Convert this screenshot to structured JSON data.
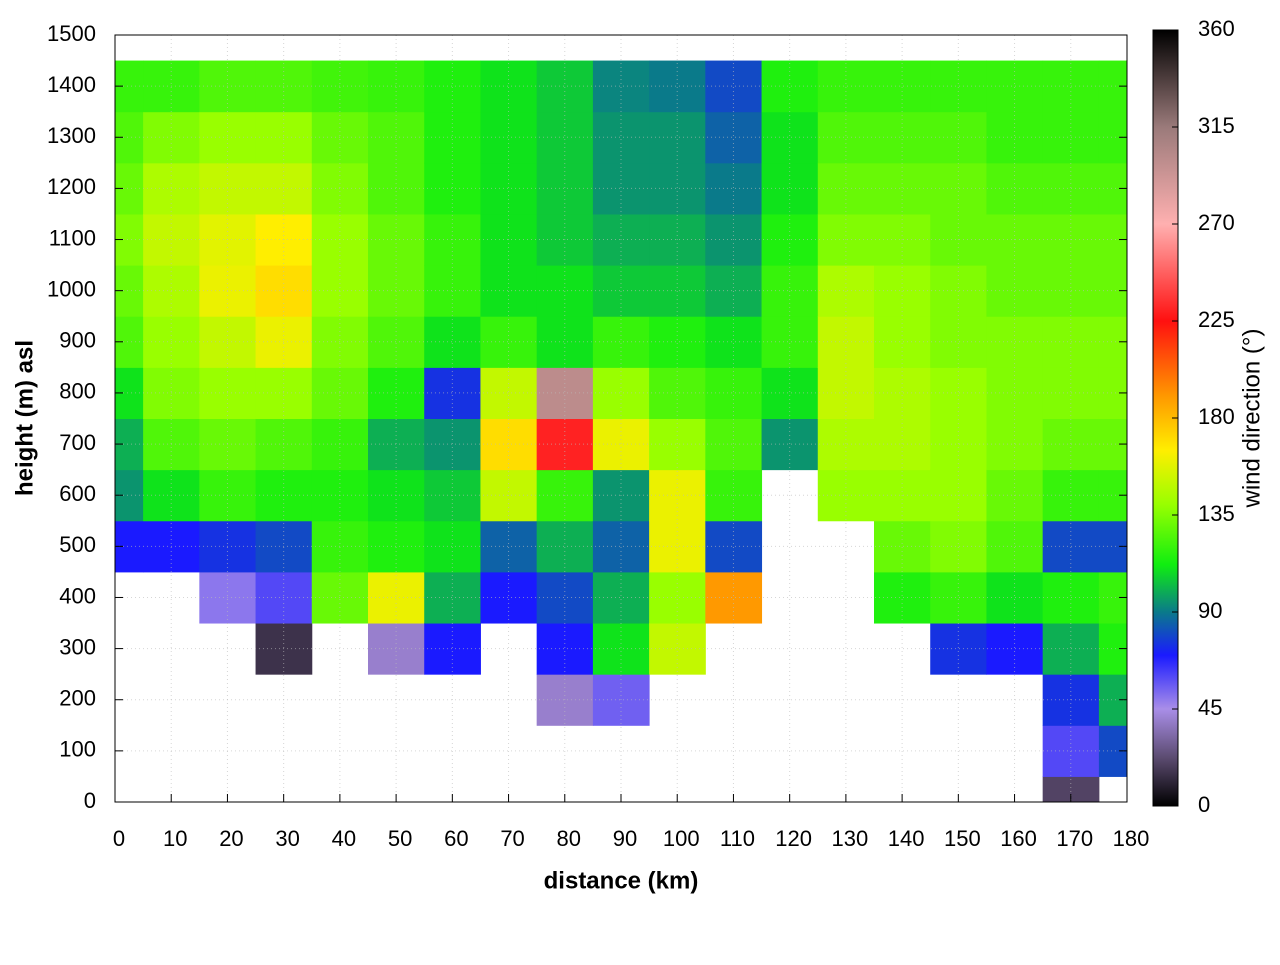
{
  "chart_data": {
    "type": "heatmap",
    "x_label": "distance (km)",
    "y_label": "height (m) asl",
    "colorbar_label": "wind direction (°)",
    "x": [
      0,
      10,
      20,
      30,
      40,
      50,
      60,
      70,
      80,
      90,
      100,
      110,
      120,
      130,
      140,
      150,
      160,
      170,
      180
    ],
    "y": [
      0,
      100,
      200,
      300,
      400,
      500,
      600,
      700,
      800,
      900,
      1000,
      1100,
      1200,
      1300,
      1400,
      1500
    ],
    "z": [
      [
        null,
        null,
        null,
        null,
        null,
        70,
        95,
        100,
        110,
        125,
        130,
        135,
        130,
        125,
        120,
        null
      ],
      [
        null,
        null,
        null,
        null,
        null,
        70,
        110,
        125,
        135,
        140,
        145,
        150,
        145,
        135,
        120,
        null
      ],
      [
        null,
        null,
        null,
        null,
        50,
        75,
        120,
        130,
        140,
        150,
        160,
        158,
        150,
        140,
        125,
        null
      ],
      [
        null,
        null,
        null,
        15,
        60,
        80,
        115,
        125,
        140,
        160,
        170,
        165,
        150,
        140,
        125,
        null
      ],
      [
        null,
        null,
        null,
        null,
        130,
        120,
        115,
        120,
        130,
        135,
        140,
        140,
        135,
        130,
        122,
        null
      ],
      [
        null,
        null,
        null,
        40,
        160,
        115,
        110,
        100,
        115,
        125,
        130,
        130,
        125,
        125,
        120,
        null
      ],
      [
        null,
        null,
        null,
        70,
        100,
        110,
        105,
        95,
        75,
        110,
        120,
        120,
        115,
        115,
        115,
        null
      ],
      [
        null,
        null,
        null,
        null,
        70,
        85,
        150,
        170,
        150,
        120,
        110,
        110,
        110,
        110,
        110,
        null
      ],
      [
        null,
        null,
        40,
        70,
        80,
        100,
        120,
        230,
        300,
        110,
        110,
        105,
        105,
        105,
        105,
        null
      ],
      [
        null,
        null,
        55,
        110,
        100,
        85,
        95,
        160,
        140,
        120,
        105,
        100,
        95,
        95,
        92,
        null
      ],
      [
        null,
        null,
        null,
        150,
        140,
        160,
        160,
        140,
        125,
        115,
        105,
        100,
        95,
        95,
        90,
        null
      ],
      [
        null,
        null,
        null,
        null,
        190,
        80,
        120,
        125,
        120,
        110,
        100,
        95,
        90,
        85,
        80,
        null
      ],
      [
        null,
        null,
        null,
        null,
        null,
        null,
        null,
        95,
        110,
        120,
        120,
        115,
        110,
        110,
        115,
        null
      ],
      [
        null,
        null,
        null,
        null,
        null,
        null,
        140,
        145,
        150,
        150,
        145,
        135,
        130,
        125,
        120,
        null
      ],
      [
        null,
        null,
        null,
        null,
        115,
        130,
        140,
        145,
        145,
        140,
        140,
        135,
        130,
        125,
        120,
        null
      ],
      [
        null,
        null,
        null,
        75,
        120,
        135,
        140,
        140,
        140,
        135,
        135,
        130,
        130,
        125,
        120,
        null
      ],
      [
        null,
        null,
        null,
        70,
        110,
        125,
        130,
        135,
        135,
        135,
        130,
        130,
        125,
        120,
        120,
        null
      ],
      [
        20,
        60,
        75,
        100,
        115,
        80,
        120,
        130,
        135,
        135,
        130,
        130,
        125,
        120,
        120,
        null
      ],
      [
        null,
        80,
        100,
        115,
        120,
        80,
        120,
        130,
        135,
        135,
        130,
        130,
        125,
        120,
        120,
        null
      ]
    ],
    "xlim": [
      0,
      180
    ],
    "xticks": [
      0,
      10,
      20,
      30,
      40,
      50,
      60,
      70,
      80,
      90,
      100,
      110,
      120,
      130,
      140,
      150,
      160,
      170,
      180
    ],
    "ylim": [
      0,
      1500
    ],
    "yticks": [
      0,
      100,
      200,
      300,
      400,
      500,
      600,
      700,
      800,
      900,
      1000,
      1100,
      1200,
      1300,
      1400,
      1500
    ],
    "zlim": [
      0,
      360
    ],
    "zticks": [
      0,
      45,
      90,
      135,
      180,
      225,
      270,
      315,
      360
    ],
    "grid": true,
    "colormap": [
      [
        0,
        "#000000"
      ],
      [
        22,
        "#5a4a6e"
      ],
      [
        45,
        "#a98ee8"
      ],
      [
        70,
        "#1a1aff"
      ],
      [
        90,
        "#0a7a8a"
      ],
      [
        112,
        "#10ee10"
      ],
      [
        140,
        "#99ff00"
      ],
      [
        165,
        "#ffee00"
      ],
      [
        190,
        "#ff9900"
      ],
      [
        225,
        "#ff1010"
      ],
      [
        270,
        "#ffb0b0"
      ],
      [
        315,
        "#9a7a7a"
      ],
      [
        360,
        "#000000"
      ]
    ]
  }
}
